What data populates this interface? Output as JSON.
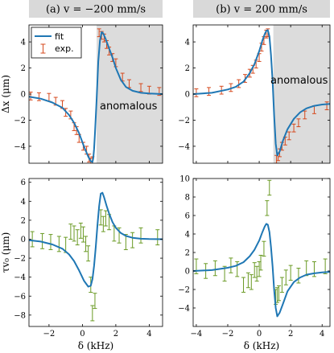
{
  "chart_data": [
    {
      "type": "line",
      "panel": "top-left",
      "title": "(a) v = −200 mm/s",
      "ylabel": "Δx (μm)",
      "xlim": [
        -3.2,
        4.8
      ],
      "ylim": [
        -5.3,
        5.3
      ],
      "xticks": [
        -2,
        0,
        2,
        4
      ],
      "yticks": [
        -4,
        -2,
        0,
        2,
        4
      ],
      "grid": false,
      "legend_position": "top-left",
      "legend": {
        "fit": "fit",
        "exp": "exp."
      },
      "annotation": "anomalous",
      "shaded_region": {
        "x_start": 0.85,
        "x_end": 4.8
      },
      "fit": {
        "name": "fit",
        "color": "#1f77b4",
        "x": [
          -3.2,
          -2.5,
          -1.8,
          -1.2,
          -0.8,
          -0.5,
          -0.2,
          0.1,
          0.35,
          0.5,
          0.6,
          0.65,
          0.7,
          0.75,
          0.85,
          0.95,
          1.05,
          1.15,
          1.25,
          1.4,
          1.6,
          1.8,
          2.0,
          2.3,
          2.6,
          3.0,
          3.5,
          4.0,
          4.8
        ],
        "y": [
          -0.2,
          -0.35,
          -0.65,
          -1.05,
          -1.6,
          -2.2,
          -3.0,
          -4.05,
          -4.8,
          -5.15,
          -5.2,
          -4.9,
          -4.2,
          -3.0,
          -0.5,
          2.5,
          4.1,
          4.75,
          4.65,
          4.2,
          3.5,
          2.8,
          2.0,
          1.1,
          0.55,
          0.25,
          0.1,
          0.05,
          0.0
        ]
      },
      "exp": {
        "name": "exp.",
        "color": "#d64a1e",
        "x": [
          -3.1,
          -2.6,
          -2.0,
          -1.6,
          -1.2,
          -1.0,
          -0.7,
          -0.5,
          -0.35,
          -0.2,
          0.05,
          0.25,
          0.4,
          0.5,
          0.6,
          1.0,
          1.15,
          1.3,
          1.45,
          1.6,
          1.8,
          2.0,
          2.4,
          2.8,
          3.5,
          4.0,
          4.6
        ],
        "y": [
          -0.15,
          -0.2,
          -0.25,
          -0.55,
          -0.8,
          -1.4,
          -1.6,
          -2.5,
          -2.8,
          -3.4,
          -4.0,
          -4.3,
          -4.9,
          -5.2,
          -5.1,
          4.7,
          4.5,
          4.3,
          3.8,
          3.3,
          2.8,
          2.4,
          1.3,
          0.8,
          0.5,
          0.3,
          0.2
        ],
        "err": [
          0.3,
          0.3,
          0.3,
          0.3,
          0.3,
          0.3,
          0.3,
          0.3,
          0.3,
          0.3,
          0.3,
          0.3,
          0.3,
          0.3,
          0.3,
          0.3,
          0.3,
          0.3,
          0.3,
          0.3,
          0.3,
          0.3,
          0.3,
          0.3,
          0.3,
          0.3,
          0.3
        ]
      }
    },
    {
      "type": "line",
      "panel": "top-right",
      "title": "(b) v = 200 mm/s",
      "ylabel": "",
      "xlim": [
        -4.2,
        4.5
      ],
      "ylim": [
        -5.3,
        5.3
      ],
      "xticks": [
        -4,
        -2,
        0,
        2,
        4
      ],
      "yticks": [
        -4,
        -2,
        0,
        2,
        4
      ],
      "grid": false,
      "annotation": "anomalous",
      "shaded_region": {
        "x_start": 0.9,
        "x_end": 4.5
      },
      "fit": {
        "name": "fit",
        "color": "#1f77b4",
        "x": [
          -4.2,
          -3.0,
          -2.0,
          -1.5,
          -1.0,
          -0.6,
          -0.3,
          0.0,
          0.2,
          0.35,
          0.45,
          0.55,
          0.65,
          0.75,
          0.85,
          0.95,
          1.05,
          1.15,
          1.3,
          1.5,
          1.8,
          2.2,
          2.6,
          3.0,
          3.5,
          4.0,
          4.5
        ],
        "y": [
          0.0,
          0.1,
          0.35,
          0.55,
          0.95,
          1.6,
          2.3,
          3.3,
          4.1,
          4.6,
          4.85,
          4.9,
          4.4,
          3.0,
          1.0,
          -1.6,
          -3.8,
          -4.7,
          -4.4,
          -3.6,
          -2.7,
          -1.9,
          -1.4,
          -1.1,
          -0.9,
          -0.8,
          -0.75
        ]
      },
      "exp": {
        "name": "exp.",
        "color": "#d64a1e",
        "x": [
          -4.0,
          -3.2,
          -2.4,
          -1.8,
          -1.3,
          -0.9,
          -0.6,
          -0.4,
          -0.2,
          0.0,
          0.15,
          0.3,
          0.45,
          0.55,
          1.1,
          1.2,
          1.3,
          1.45,
          1.65,
          1.9,
          2.2,
          2.5,
          2.9,
          3.5,
          4.3
        ],
        "y": [
          0.1,
          0.2,
          0.3,
          0.5,
          0.8,
          1.2,
          1.6,
          1.9,
          2.3,
          2.8,
          3.6,
          4.1,
          4.6,
          4.7,
          -5.0,
          -4.8,
          -4.5,
          -4.0,
          -3.6,
          -3.2,
          -2.6,
          -2.2,
          -1.6,
          -1.2,
          -0.9
        ],
        "err": [
          0.3,
          0.3,
          0.3,
          0.3,
          0.3,
          0.3,
          0.3,
          0.3,
          0.3,
          0.3,
          0.3,
          0.3,
          0.3,
          0.3,
          0.3,
          0.3,
          0.3,
          0.3,
          0.3,
          0.3,
          0.3,
          0.3,
          0.3,
          0.3,
          0.3
        ]
      }
    },
    {
      "type": "line",
      "panel": "bottom-left",
      "title": "",
      "xlabel": "δ (kHz)",
      "ylabel": "τv₀ (μm)",
      "xlim": [
        -3.2,
        4.8
      ],
      "ylim": [
        -9.2,
        6.4
      ],
      "xticks": [
        -2,
        0,
        2,
        4
      ],
      "yticks": [
        -8,
        -6,
        -4,
        -2,
        0,
        2,
        4,
        6
      ],
      "grid": false,
      "fit": {
        "name": "fit",
        "color": "#1f77b4",
        "x": [
          -3.2,
          -2.5,
          -1.8,
          -1.2,
          -0.8,
          -0.5,
          -0.2,
          0.1,
          0.35,
          0.5,
          0.6,
          0.7,
          0.8,
          0.9,
          1.0,
          1.1,
          1.2,
          1.3,
          1.45,
          1.6,
          1.8,
          2.0,
          2.3,
          2.6,
          3.0,
          3.5,
          4.0,
          4.8
        ],
        "y": [
          -0.1,
          -0.25,
          -0.55,
          -1.0,
          -1.6,
          -2.3,
          -3.3,
          -4.4,
          -5.0,
          -4.9,
          -4.2,
          -2.8,
          -0.8,
          1.5,
          3.5,
          4.8,
          4.9,
          4.4,
          3.5,
          2.7,
          1.8,
          1.2,
          0.65,
          0.35,
          0.15,
          0.05,
          0.02,
          0.0
        ]
      },
      "exp": {
        "name": "exp.",
        "color": "#6a9a24",
        "x": [
          -3.0,
          -2.4,
          -1.9,
          -1.4,
          -1.0,
          -0.7,
          -0.5,
          -0.3,
          -0.1,
          0.05,
          0.2,
          0.35,
          0.5,
          0.6,
          0.75,
          1.1,
          1.25,
          1.4,
          1.6,
          1.9,
          2.2,
          2.6,
          3.0,
          3.5,
          4.5
        ],
        "y": [
          0.0,
          -0.2,
          -0.3,
          -0.5,
          -0.6,
          0.8,
          0.6,
          0.2,
          0.9,
          0.5,
          -0.5,
          -1.5,
          -4.8,
          -7.8,
          -6.5,
          2.3,
          1.6,
          2.2,
          1.8,
          0.6,
          0.4,
          -0.3,
          -0.1,
          0.4,
          0.2
        ],
        "err": [
          0.8,
          0.8,
          0.8,
          0.8,
          0.8,
          0.8,
          0.8,
          0.8,
          0.8,
          0.8,
          0.8,
          0.8,
          0.8,
          0.8,
          0.8,
          0.8,
          0.8,
          0.8,
          0.8,
          0.8,
          0.8,
          0.8,
          0.8,
          0.8,
          0.8
        ]
      }
    },
    {
      "type": "line",
      "panel": "bottom-right",
      "title": "",
      "xlabel": "δ (kHz)",
      "ylabel": "",
      "xlim": [
        -4.2,
        4.5
      ],
      "ylim": [
        -6.0,
        10.0
      ],
      "xticks": [
        -4,
        -2,
        0,
        2,
        4
      ],
      "yticks": [
        -4,
        -2,
        0,
        2,
        4,
        6,
        8,
        10
      ],
      "grid": false,
      "fit": {
        "name": "fit",
        "color": "#1f77b4",
        "x": [
          -4.2,
          -3.0,
          -2.0,
          -1.5,
          -1.0,
          -0.6,
          -0.3,
          0.0,
          0.2,
          0.35,
          0.45,
          0.55,
          0.65,
          0.75,
          0.85,
          0.95,
          1.05,
          1.15,
          1.3,
          1.5,
          1.8,
          2.2,
          2.6,
          3.0,
          3.5,
          4.0,
          4.5
        ],
        "y": [
          0.0,
          0.1,
          0.35,
          0.55,
          0.95,
          1.6,
          2.3,
          3.3,
          4.2,
          4.8,
          5.1,
          5.0,
          4.2,
          2.6,
          0.5,
          -2.0,
          -4.0,
          -4.9,
          -4.5,
          -3.6,
          -2.2,
          -1.2,
          -0.7,
          -0.4,
          -0.25,
          -0.15,
          -0.1
        ]
      },
      "exp": {
        "name": "exp.",
        "color": "#6a9a24",
        "x": [
          -4.0,
          -3.4,
          -2.8,
          -2.2,
          -1.8,
          -1.4,
          -1.0,
          -0.7,
          -0.5,
          -0.3,
          -0.15,
          0.0,
          0.1,
          0.3,
          0.5,
          0.65,
          1.05,
          1.15,
          1.25,
          1.45,
          1.7,
          2.0,
          2.5,
          3.0,
          3.5,
          4.2
        ],
        "y": [
          0.5,
          0.0,
          0.3,
          -0.3,
          0.6,
          0.2,
          -1.5,
          -1.0,
          -1.2,
          0.1,
          -0.3,
          0.2,
          0.9,
          2.4,
          6.8,
          9.0,
          -2.8,
          -2.6,
          -2.4,
          -1.5,
          -0.7,
          -0.2,
          -0.5,
          0.3,
          0.2,
          0.5
        ],
        "err": [
          0.8,
          0.8,
          0.8,
          0.8,
          0.8,
          0.8,
          0.8,
          0.8,
          0.8,
          0.8,
          0.8,
          0.8,
          0.8,
          0.8,
          0.8,
          0.8,
          0.8,
          0.8,
          0.8,
          0.8,
          0.8,
          0.8,
          0.8,
          0.8,
          0.8,
          0.8
        ]
      }
    }
  ]
}
